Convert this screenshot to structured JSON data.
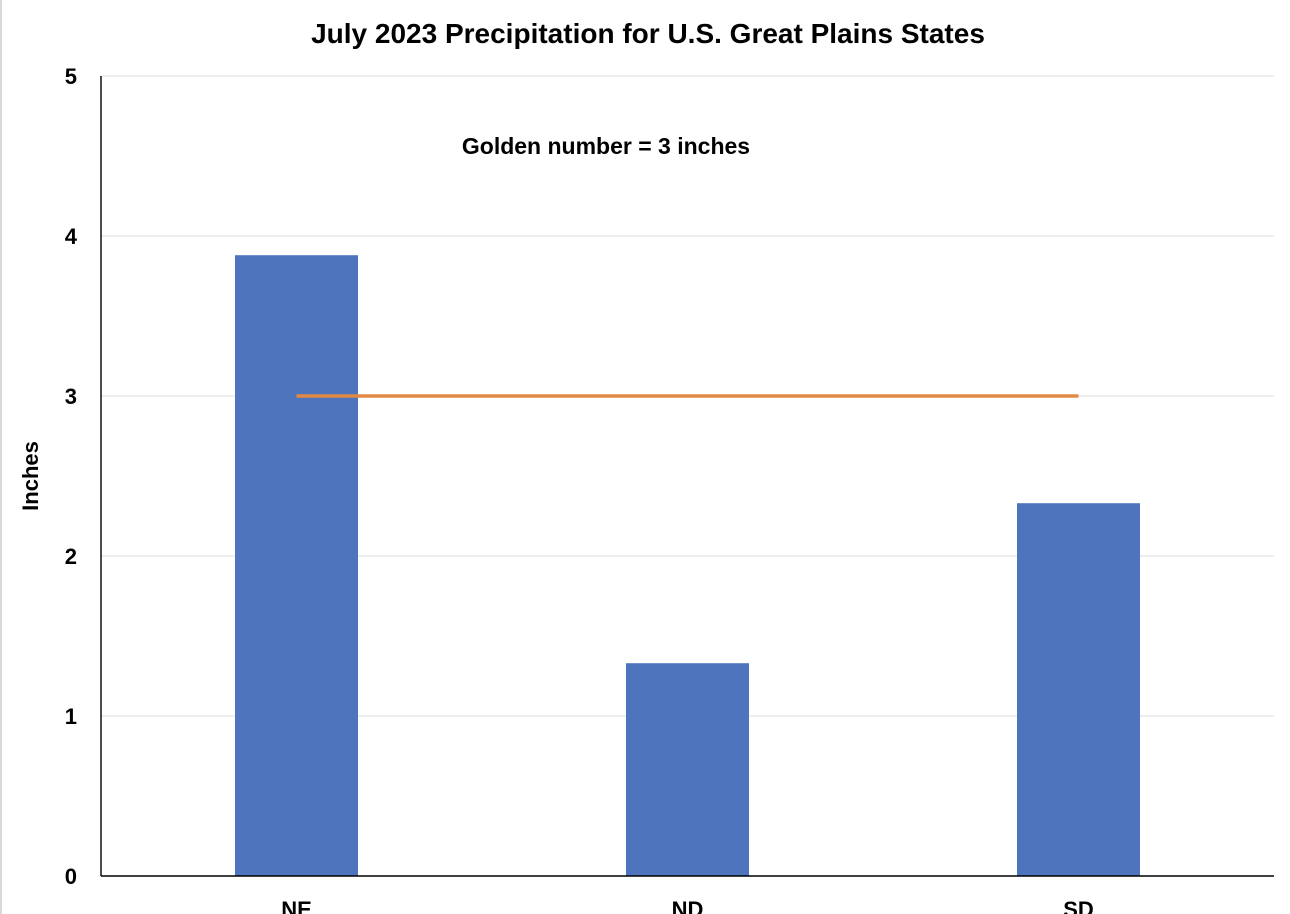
{
  "chart_data": {
    "type": "bar",
    "title": "July 2023 Precipitation for U.S. Great Plains States",
    "xlabel": "",
    "ylabel": "Inches",
    "categories": [
      "NE",
      "ND",
      "SD"
    ],
    "values": [
      3.88,
      1.33,
      2.33
    ],
    "ylim": [
      0,
      5
    ],
    "yticks": [
      "0",
      "1",
      "2",
      "3",
      "4",
      "5"
    ],
    "grid": true,
    "legend": "none",
    "reference_line": {
      "value": 3,
      "color": "#E28A45"
    },
    "annotation": "Golden number = 3 inches",
    "bar_color": "#4F74BE",
    "grid_color": "#E3E3E3",
    "axis_color": "#000000"
  }
}
